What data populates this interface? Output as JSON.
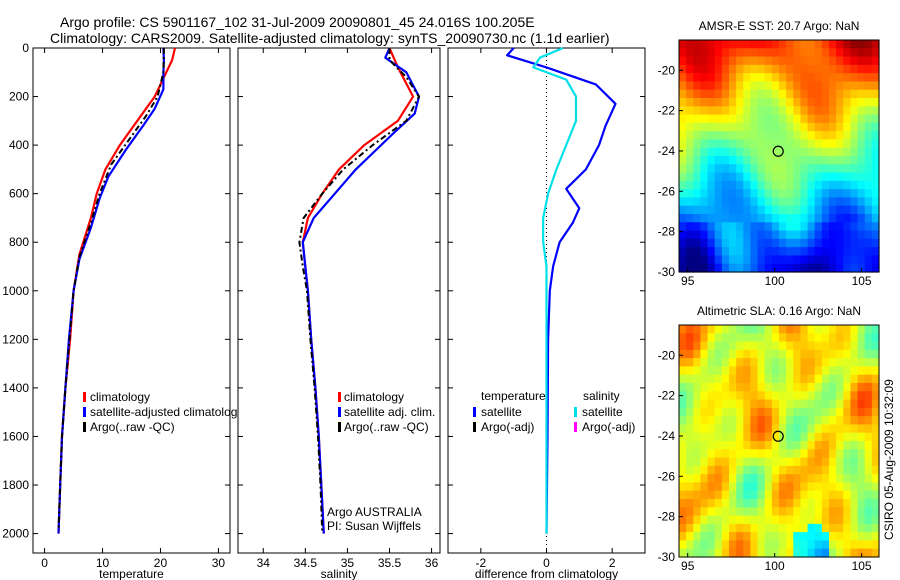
{
  "header": {
    "line1": "Argo profile: CS 5901167_102 31-Jul-2009 20090801_45 24.016S 100.205E",
    "line2": "Climatology: CARS2009. Satellite-adjusted climatology: synTS_20090730.nc (1.1d earlier)"
  },
  "side_label": "CSIRO 05-Aug-2009 10:32:09",
  "colors": {
    "clim": "#ff0000",
    "sat": "#0000ff",
    "argo": "#000000",
    "cyan": "#00e0e8",
    "magenta": "#ff00ff"
  },
  "chart_data": [
    {
      "type": "line",
      "id": "temperature",
      "xlabel": "temperature",
      "xlim": [
        -2,
        32
      ],
      "ylim": [
        0,
        2080
      ],
      "xticks": [
        0,
        10,
        20,
        30
      ],
      "yticks": [
        0,
        200,
        400,
        600,
        800,
        1000,
        1200,
        1400,
        1600,
        1800,
        2000
      ],
      "series": [
        {
          "name": "climatology",
          "color": "#ff0000",
          "dash": "",
          "points": [
            [
              22.5,
              0
            ],
            [
              22,
              50
            ],
            [
              21,
              100
            ],
            [
              19,
              200
            ],
            [
              16,
              300
            ],
            [
              13,
              400
            ],
            [
              10.5,
              500
            ],
            [
              9,
              600
            ],
            [
              8,
              700
            ],
            [
              6,
              850
            ],
            [
              5,
              1000
            ],
            [
              4.4,
              1200
            ],
            [
              3.6,
              1400
            ],
            [
              3,
              1600
            ],
            [
              2.7,
              1800
            ],
            [
              2.4,
              2000
            ]
          ]
        },
        {
          "name": "satellite-adjusted climatology",
          "color": "#0000ff",
          "dash": "",
          "points": [
            [
              20.5,
              0
            ],
            [
              20.6,
              50
            ],
            [
              20.5,
              100
            ],
            [
              20.5,
              170
            ],
            [
              19,
              250
            ],
            [
              17,
              320
            ],
            [
              14,
              420
            ],
            [
              11,
              530
            ],
            [
              9.5,
              620
            ],
            [
              8,
              740
            ],
            [
              6,
              870
            ],
            [
              5,
              1000
            ],
            [
              4.2,
              1200
            ],
            [
              3.6,
              1400
            ],
            [
              3,
              1600
            ],
            [
              2.7,
              1800
            ],
            [
              2.4,
              2000
            ]
          ]
        },
        {
          "name": "Argo(..raw -QC)",
          "color": "#000000",
          "dash": "6,3,2,3",
          "points": [
            [
              20.6,
              0
            ],
            [
              20.5,
              100
            ],
            [
              19.5,
              200
            ],
            [
              17.5,
              280
            ],
            [
              14.5,
              380
            ],
            [
              11.5,
              480
            ],
            [
              9.5,
              600
            ],
            [
              8,
              720
            ],
            [
              6,
              860
            ],
            [
              5,
              1000
            ],
            [
              4.3,
              1200
            ],
            [
              3.6,
              1400
            ],
            [
              3,
              1600
            ],
            [
              2.7,
              1800
            ],
            [
              2.4,
              1990
            ]
          ]
        }
      ],
      "legend": [
        {
          "label": "climatology",
          "color": "#ff0000"
        },
        {
          "label": "satellite-adjusted climatology",
          "color": "#0000ff"
        },
        {
          "label": "Argo(..raw -QC)",
          "color": "#000000"
        }
      ]
    },
    {
      "type": "line",
      "id": "salinity",
      "xlabel": "salinity",
      "xlim": [
        33.7,
        36.1
      ],
      "ylim": [
        0,
        2080
      ],
      "xticks": [
        34,
        34.5,
        35,
        35.5,
        36
      ],
      "series": [
        {
          "name": "climatology",
          "color": "#ff0000",
          "dash": "",
          "points": [
            [
              35.5,
              0
            ],
            [
              35.6,
              80
            ],
            [
              35.78,
              200
            ],
            [
              35.6,
              300
            ],
            [
              35.2,
              400
            ],
            [
              34.9,
              500
            ],
            [
              34.7,
              600
            ],
            [
              34.53,
              700
            ],
            [
              34.47,
              800
            ],
            [
              34.5,
              900
            ],
            [
              34.53,
              1000
            ],
            [
              34.57,
              1200
            ],
            [
              34.62,
              1400
            ],
            [
              34.66,
              1600
            ],
            [
              34.69,
              1800
            ],
            [
              34.72,
              2000
            ]
          ]
        },
        {
          "name": "satellite adj. clim.",
          "color": "#0000ff",
          "dash": "",
          "points": [
            [
              35.5,
              0
            ],
            [
              35.45,
              40
            ],
            [
              35.7,
              100
            ],
            [
              35.85,
              200
            ],
            [
              35.8,
              270
            ],
            [
              35.55,
              350
            ],
            [
              35.1,
              500
            ],
            [
              34.85,
              600
            ],
            [
              34.6,
              700
            ],
            [
              34.47,
              800
            ],
            [
              34.5,
              900
            ],
            [
              34.53,
              1000
            ],
            [
              34.57,
              1200
            ],
            [
              34.62,
              1400
            ],
            [
              34.66,
              1600
            ],
            [
              34.69,
              1800
            ],
            [
              34.72,
              2000
            ]
          ]
        },
        {
          "name": "Argo(..raw -QC)",
          "color": "#000000",
          "dash": "6,3,2,3",
          "points": [
            [
              35.5,
              0
            ],
            [
              35.5,
              50
            ],
            [
              35.7,
              120
            ],
            [
              35.85,
              200
            ],
            [
              35.7,
              300
            ],
            [
              35.3,
              400
            ],
            [
              34.95,
              500
            ],
            [
              34.7,
              600
            ],
            [
              34.48,
              700
            ],
            [
              34.43,
              800
            ],
            [
              34.47,
              900
            ],
            [
              34.52,
              1000
            ],
            [
              34.56,
              1200
            ],
            [
              34.61,
              1400
            ],
            [
              34.65,
              1600
            ],
            [
              34.68,
              1800
            ],
            [
              34.7,
              1990
            ]
          ]
        }
      ],
      "legend": [
        {
          "label": "climatology",
          "color": "#ff0000"
        },
        {
          "label": "satellite adj. clim.",
          "color": "#0000ff"
        },
        {
          "label": "Argo(..raw -QC)",
          "color": "#000000"
        }
      ],
      "annotation": [
        "Argo AUSTRALIA",
        "PI: Susan Wijffels"
      ]
    },
    {
      "type": "line",
      "id": "difference",
      "xlabel": "difference from climatology",
      "xlim": [
        -3,
        3
      ],
      "ylim": [
        0,
        2080
      ],
      "xticks": [
        -2,
        0,
        2
      ],
      "zero_line": true,
      "series": [
        {
          "name": "temperature satellite",
          "color": "#0000ff",
          "dash": "",
          "points": [
            [
              -1,
              0
            ],
            [
              -1.2,
              30
            ],
            [
              0,
              80
            ],
            [
              1.5,
              150
            ],
            [
              2.1,
              230
            ],
            [
              1.8,
              320
            ],
            [
              1.6,
              400
            ],
            [
              1.2,
              500
            ],
            [
              0.6,
              580
            ],
            [
              1,
              660
            ],
            [
              0.8,
              720
            ],
            [
              0.4,
              800
            ],
            [
              0.2,
              900
            ],
            [
              0.1,
              1000
            ],
            [
              0.05,
              1200
            ],
            [
              0.03,
              1600
            ],
            [
              0,
              2000
            ]
          ]
        },
        {
          "name": "temperature Argo(-adj)",
          "color": "#000000",
          "dash": "",
          "points": []
        },
        {
          "name": "salinity satellite",
          "color": "#00e0e8",
          "dash": "",
          "points": [
            [
              0.5,
              0
            ],
            [
              -0.2,
              40
            ],
            [
              -0.4,
              80
            ],
            [
              0.6,
              130
            ],
            [
              0.9,
              200
            ],
            [
              0.9,
              300
            ],
            [
              0.6,
              400
            ],
            [
              0.3,
              500
            ],
            [
              0.05,
              600
            ],
            [
              -0.1,
              700
            ],
            [
              -0.1,
              800
            ],
            [
              0,
              900
            ],
            [
              0,
              1000
            ],
            [
              0,
              1400
            ],
            [
              0,
              2000
            ]
          ]
        },
        {
          "name": "salinity Argo(-adj)",
          "color": "#ff00ff",
          "dash": "",
          "points": []
        }
      ],
      "legend_groups": [
        {
          "title": "temperature",
          "items": [
            {
              "label": "satellite",
              "color": "#0000ff"
            },
            {
              "label": "Argo(-adj)",
              "color": "#000000"
            }
          ]
        },
        {
          "title": "salinity",
          "items": [
            {
              "label": "satellite",
              "color": "#00e0e8"
            },
            {
              "label": "Argo(-adj)",
              "color": "#ff00ff"
            }
          ]
        }
      ]
    },
    {
      "type": "heatmap",
      "id": "sst_map",
      "title": "AMSR-E SST: 20.7 Argo: NaN",
      "xlim": [
        94.5,
        106
      ],
      "ylim": [
        -30,
        -18.5
      ],
      "xticks": [
        95,
        100,
        105
      ],
      "yticks": [
        -20,
        -22,
        -24,
        -26,
        -28,
        -30
      ],
      "marker": [
        100.205,
        -24.016
      ]
    },
    {
      "type": "heatmap",
      "id": "sla_map",
      "title": "Altimetric SLA: 0.16 Argo: NaN",
      "xlim": [
        94.5,
        106
      ],
      "ylim": [
        -30,
        -18.5
      ],
      "xticks": [
        95,
        100,
        105
      ],
      "yticks": [
        -20,
        -22,
        -24,
        -26,
        -28,
        -30
      ],
      "marker": [
        100.205,
        -24.016
      ]
    }
  ]
}
